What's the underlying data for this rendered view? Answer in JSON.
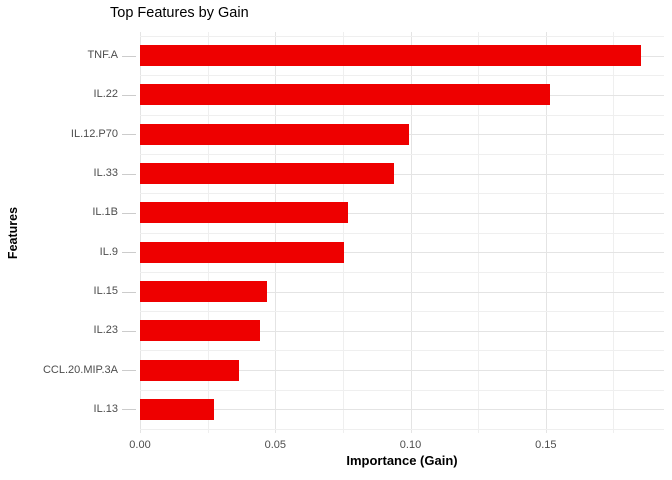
{
  "chart_data": {
    "type": "bar",
    "orientation": "horizontal",
    "title": "Top Features by Gain",
    "xlabel": "Importance (Gain)",
    "ylabel": "Features",
    "categories": [
      "TNF.A",
      "IL.22",
      "IL.12.P70",
      "IL.33",
      "IL.1B",
      "IL.9",
      "IL.15",
      "IL.23",
      "CCL.20.MIP.3A",
      "IL.13"
    ],
    "values": [
      0.185,
      0.1515,
      0.0995,
      0.094,
      0.077,
      0.0755,
      0.047,
      0.0445,
      0.0365,
      0.0275
    ],
    "x_tick_labels": [
      "0.00",
      "0.05",
      "0.10",
      "0.15"
    ],
    "x_tick_values": [
      0.0,
      0.05,
      0.1,
      0.15
    ],
    "x_minor_values": [
      0.025,
      0.075,
      0.125,
      0.175
    ],
    "xlim": [
      0.0,
      0.1937
    ],
    "grid": true,
    "legend": false,
    "colors": {
      "bar": "#ee0000",
      "grid_major": "#e4e4e4",
      "grid_minor": "#efefef",
      "tick_text": "#4d4d4d",
      "tick_mark": "#cccccc",
      "title_text": "#000000"
    }
  }
}
